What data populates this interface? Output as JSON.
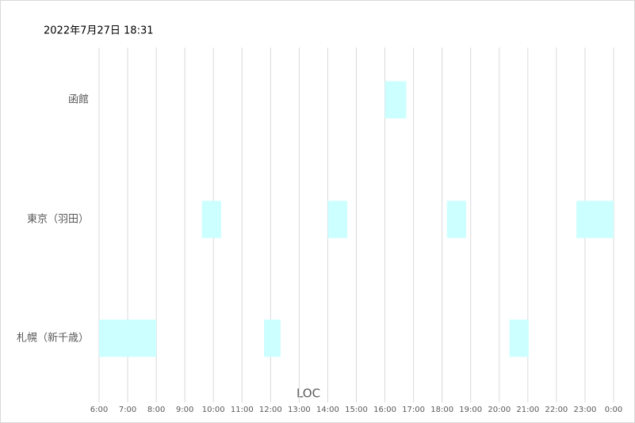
{
  "chart_data": {
    "type": "range-bar",
    "title": "2022年7月27日 18:31",
    "x_label": "LOC",
    "categories": [
      "函館",
      "東京（羽田）",
      "札幌（新千歳）"
    ],
    "ranges": [
      [
        [
          16.0,
          16.75
        ]
      ],
      [
        [
          9.6,
          10.27
        ],
        [
          14.0,
          14.68
        ],
        [
          18.17,
          18.84
        ],
        [
          22.7,
          24
        ]
      ],
      [
        [
          6,
          8
        ],
        [
          11.77,
          12.35
        ],
        [
          20.36,
          21.03
        ]
      ]
    ],
    "color": "#ccffff",
    "xlim": [
      6,
      24
    ],
    "xticks": [
      {
        "value": 6,
        "label": "6:00"
      },
      {
        "value": 7,
        "label": "7:00"
      },
      {
        "value": 8,
        "label": "8:00"
      },
      {
        "value": 9,
        "label": "9:00"
      },
      {
        "value": 10,
        "label": "10:00"
      },
      {
        "value": 11,
        "label": "11:00"
      },
      {
        "value": 12,
        "label": "12:00"
      },
      {
        "value": 13,
        "label": "13:00"
      },
      {
        "value": 14,
        "label": "14:00"
      },
      {
        "value": 15,
        "label": "15:00"
      },
      {
        "value": 16,
        "label": "16:00"
      },
      {
        "value": 17,
        "label": "17:00"
      },
      {
        "value": 18,
        "label": "18:00"
      },
      {
        "value": 19,
        "label": "19:00"
      },
      {
        "value": 20,
        "label": "20:00"
      },
      {
        "value": 21,
        "label": "21:00"
      },
      {
        "value": 22,
        "label": "22:00"
      },
      {
        "value": 23,
        "label": "23:00"
      },
      {
        "value": 24,
        "label": "0:00"
      }
    ],
    "grid": true
  }
}
